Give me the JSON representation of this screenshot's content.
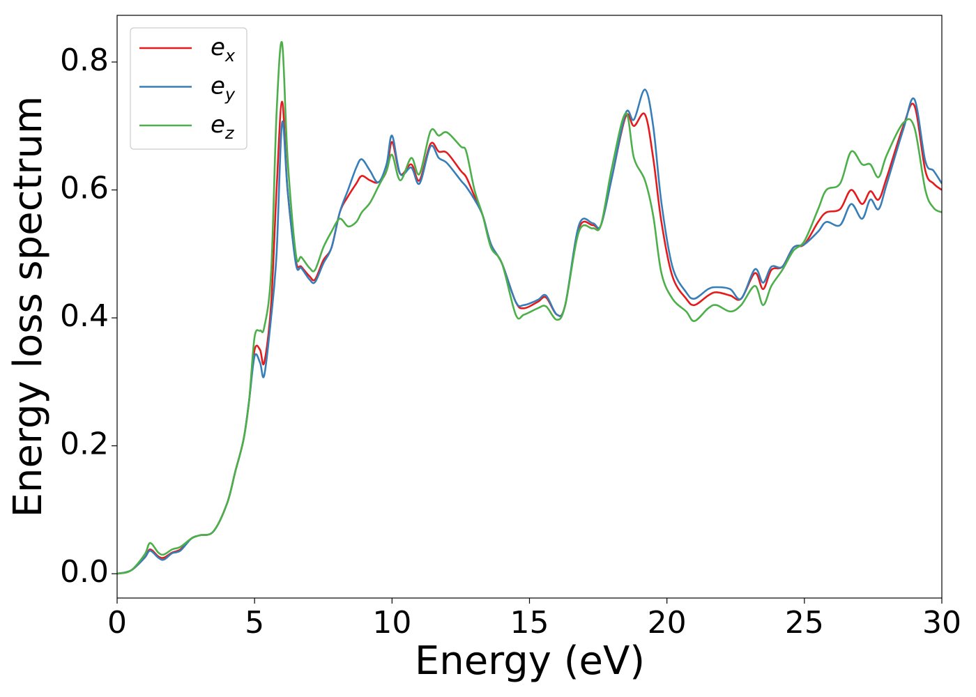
{
  "chart_data": {
    "type": "line",
    "xlabel": "Energy (eV)",
    "ylabel": "Energy loss spectrum",
    "x": [
      0,
      0.5,
      1.0,
      1.2,
      1.5,
      1.7,
      2.0,
      2.3,
      2.7,
      3.0,
      3.5,
      4.0,
      4.3,
      4.6,
      4.8,
      5.0,
      5.2,
      5.35,
      5.6,
      5.8,
      6.0,
      6.2,
      6.5,
      6.7,
      7.0,
      7.2,
      7.5,
      7.8,
      8.1,
      8.4,
      8.7,
      8.9,
      9.2,
      9.5,
      9.8,
      10.0,
      10.3,
      10.7,
      11.0,
      11.4,
      11.7,
      12.0,
      12.5,
      12.7,
      13.0,
      13.3,
      13.6,
      14.0,
      14.5,
      14.8,
      15.3,
      15.6,
      16.0,
      16.3,
      16.8,
      17.3,
      17.6,
      18.0,
      18.5,
      18.8,
      19.2,
      19.5,
      19.8,
      20.2,
      20.7,
      21.0,
      21.5,
      21.8,
      22.3,
      22.7,
      23.2,
      23.5,
      23.8,
      24.2,
      24.6,
      25.0,
      25.5,
      25.8,
      26.3,
      26.7,
      27.1,
      27.4,
      27.7,
      28.0,
      28.6,
      29.0,
      29.4,
      29.7,
      30.0
    ],
    "series": [
      {
        "name": "ex",
        "color": "#e41a1c",
        "values": [
          0,
          0.005,
          0.025,
          0.038,
          0.027,
          0.025,
          0.033,
          0.038,
          0.055,
          0.06,
          0.066,
          0.11,
          0.16,
          0.21,
          0.27,
          0.35,
          0.35,
          0.33,
          0.42,
          0.6,
          0.738,
          0.6,
          0.49,
          0.48,
          0.465,
          0.46,
          0.49,
          0.51,
          0.565,
          0.59,
          0.61,
          0.622,
          0.615,
          0.612,
          0.63,
          0.675,
          0.625,
          0.64,
          0.615,
          0.672,
          0.66,
          0.658,
          0.63,
          0.62,
          0.59,
          0.56,
          0.515,
          0.485,
          0.425,
          0.415,
          0.425,
          0.432,
          0.405,
          0.42,
          0.54,
          0.545,
          0.545,
          0.62,
          0.715,
          0.7,
          0.718,
          0.65,
          0.55,
          0.465,
          0.43,
          0.42,
          0.435,
          0.44,
          0.435,
          0.43,
          0.47,
          0.445,
          0.475,
          0.48,
          0.51,
          0.515,
          0.55,
          0.565,
          0.57,
          0.6,
          0.578,
          0.598,
          0.585,
          0.62,
          0.7,
          0.732,
          0.63,
          0.61,
          0.6
        ]
      },
      {
        "name": "ey",
        "color": "#377eb8",
        "values": [
          0,
          0.005,
          0.025,
          0.036,
          0.025,
          0.022,
          0.032,
          0.036,
          0.055,
          0.06,
          0.066,
          0.11,
          0.16,
          0.21,
          0.27,
          0.34,
          0.33,
          0.31,
          0.4,
          0.5,
          0.705,
          0.6,
          0.485,
          0.478,
          0.46,
          0.456,
          0.485,
          0.51,
          0.565,
          0.6,
          0.635,
          0.648,
          0.63,
          0.612,
          0.64,
          0.685,
          0.625,
          0.635,
          0.61,
          0.668,
          0.65,
          0.642,
          0.615,
          0.605,
          0.585,
          0.56,
          0.515,
          0.485,
          0.425,
          0.42,
          0.428,
          0.435,
          0.405,
          0.42,
          0.545,
          0.548,
          0.545,
          0.62,
          0.72,
          0.71,
          0.757,
          0.7,
          0.58,
          0.48,
          0.44,
          0.43,
          0.445,
          0.448,
          0.445,
          0.43,
          0.476,
          0.455,
          0.48,
          0.48,
          0.51,
          0.515,
          0.535,
          0.55,
          0.545,
          0.578,
          0.555,
          0.585,
          0.57,
          0.61,
          0.695,
          0.742,
          0.645,
          0.63,
          0.61
        ]
      },
      {
        "name": "ez",
        "color": "#4daf4a",
        "values": [
          0,
          0.005,
          0.03,
          0.048,
          0.033,
          0.03,
          0.038,
          0.042,
          0.055,
          0.06,
          0.066,
          0.11,
          0.16,
          0.21,
          0.27,
          0.37,
          0.38,
          0.385,
          0.47,
          0.72,
          0.83,
          0.65,
          0.5,
          0.495,
          0.478,
          0.475,
          0.51,
          0.535,
          0.555,
          0.543,
          0.55,
          0.565,
          0.58,
          0.605,
          0.63,
          0.655,
          0.615,
          0.65,
          0.625,
          0.692,
          0.685,
          0.69,
          0.668,
          0.66,
          0.6,
          0.56,
          0.51,
          0.485,
          0.405,
          0.405,
          0.415,
          0.418,
          0.397,
          0.42,
          0.535,
          0.54,
          0.545,
          0.635,
          0.72,
          0.65,
          0.615,
          0.56,
          0.47,
          0.43,
          0.41,
          0.395,
          0.415,
          0.42,
          0.41,
          0.42,
          0.45,
          0.42,
          0.45,
          0.475,
          0.505,
          0.52,
          0.57,
          0.6,
          0.61,
          0.66,
          0.64,
          0.64,
          0.62,
          0.655,
          0.705,
          0.698,
          0.6,
          0.572,
          0.565
        ]
      }
    ],
    "xlim": [
      0,
      30
    ],
    "xticks": [
      0,
      5,
      10,
      15,
      20,
      25,
      30
    ],
    "ylim": [
      -0.038,
      0.873
    ],
    "yticks": [
      {
        "value": 0,
        "label": "0.0"
      },
      0.2,
      0.4,
      0.6,
      0.8
    ],
    "grid": false,
    "legend": "upper left"
  }
}
